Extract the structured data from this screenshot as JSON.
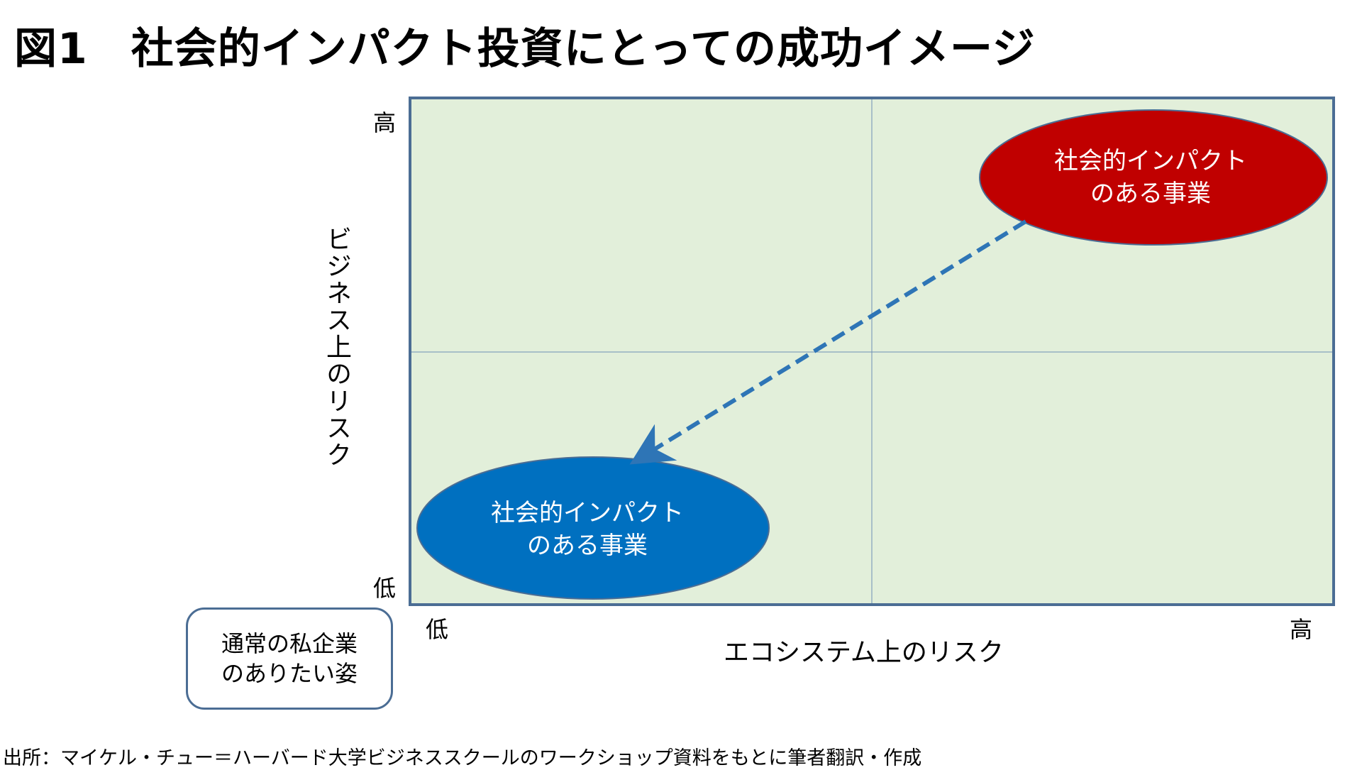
{
  "title": "図1　社会的インパクト投資にとっての成功イメージ",
  "axes": {
    "y_label": "ビジネス上のリスク",
    "x_label": "エコシステム上のリスク",
    "y_high": "高",
    "y_low": "低",
    "x_low": "低",
    "x_high": "高"
  },
  "nodes": {
    "high_risk_business": {
      "line1": "社会的インパクト",
      "line2": "のある事業",
      "color": "#c00000"
    },
    "low_risk_business": {
      "line1": "社会的インパクト",
      "line2": "のある事業",
      "color": "#0070c0"
    }
  },
  "note_box": {
    "line1": "通常の私企業",
    "line2": "のありたい姿"
  },
  "source": "出所：マイケル・チュー＝ハーバード大学ビジネススクールのワークショップ資料をもとに筆者翻訳・作成",
  "colors": {
    "quadrant_fill": "#e2efda",
    "frame": "#4b6d94",
    "arrow": "#2e75b6"
  }
}
